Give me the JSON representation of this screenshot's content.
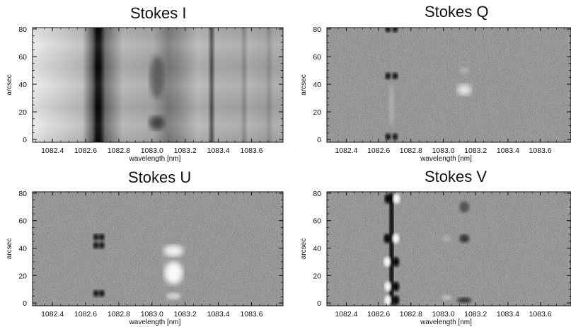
{
  "figure": {
    "panels": [
      {
        "title": "Stokes I",
        "type": "intensity",
        "ylabel": "arcsec",
        "xlabel": "wavelength [nm]",
        "xticks": [
          "1082.4",
          "1082.6",
          "1082.8",
          "1083.0",
          "1083.2",
          "1083.4",
          "1083.6"
        ],
        "yticks": [
          "0",
          "20",
          "40",
          "60",
          "80"
        ]
      },
      {
        "title": "Stokes Q",
        "type": "polarization",
        "ylabel": "arcsec",
        "xlabel": "wavelength [nm]",
        "xticks": [
          "1082.4",
          "1082.6",
          "1082.8",
          "1083.0",
          "1083.2",
          "1083.4",
          "1083.6"
        ],
        "yticks": [
          "0",
          "20",
          "40",
          "60",
          "80"
        ]
      },
      {
        "title": "Stokes U",
        "type": "polarization",
        "ylabel": "arcsec",
        "xlabel": "wavelength [nm]",
        "xticks": [
          "1082.4",
          "1082.6",
          "1082.8",
          "1083.0",
          "1083.2",
          "1083.4",
          "1083.6"
        ],
        "yticks": [
          "0",
          "20",
          "40",
          "60",
          "80"
        ]
      },
      {
        "title": "Stokes V",
        "type": "polarization",
        "ylabel": "arcsec",
        "xlabel": "wavelength [nm]",
        "xticks": [
          "1082.4",
          "1082.6",
          "1082.8",
          "1083.0",
          "1083.2",
          "1083.4",
          "1083.6"
        ],
        "yticks": [
          "0",
          "20",
          "40",
          "60",
          "80"
        ]
      }
    ],
    "x_range_nm": [
      1082.28,
      1083.79
    ],
    "y_range_arcsec": [
      -2,
      81
    ],
    "colormap": "grayscale"
  }
}
